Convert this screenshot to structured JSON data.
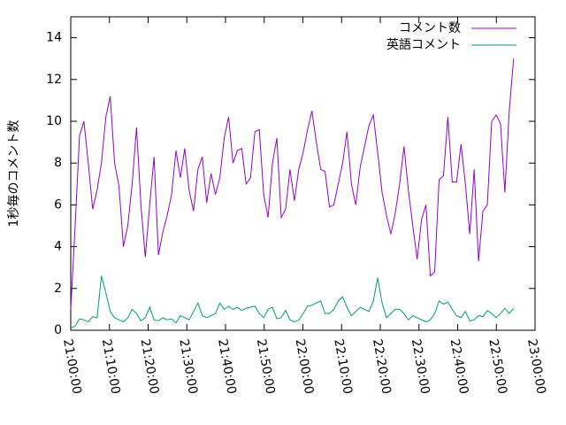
{
  "chart_data": {
    "type": "line",
    "ylabel": "1秒毎のコメント数",
    "x": [
      75600,
      75668,
      75736,
      75804,
      75872,
      75940,
      76008,
      76076,
      76144,
      76212,
      76280,
      76348,
      76416,
      76484,
      76552,
      76620,
      76688,
      76756,
      76824,
      76892,
      76960,
      77028,
      77096,
      77164,
      77232,
      77300,
      77368,
      77436,
      77504,
      77572,
      77640,
      77708,
      77776,
      77844,
      77912,
      77980,
      78048,
      78116,
      78184,
      78252,
      78320,
      78388,
      78456,
      78524,
      78592,
      78660,
      78728,
      78796,
      78864,
      78932,
      79000,
      79068,
      79136,
      79204,
      79272,
      79340,
      79408,
      79476,
      79544,
      79612,
      79680,
      79748,
      79816,
      79884,
      79952,
      80020,
      80088,
      80156,
      80224,
      80292,
      80360,
      80428,
      80496,
      80564,
      80632,
      80700,
      80768,
      80836,
      80904,
      80972,
      81040,
      81108,
      81176,
      81244,
      81312,
      81380,
      81448,
      81516,
      81584,
      81652,
      81720,
      81788,
      81856,
      81924,
      81992,
      82060,
      82128,
      82196,
      82264,
      82332,
      82400,
      82468
    ],
    "series": [
      {
        "name": "コメント数",
        "color": "#9400d3",
        "values": [
          1.0,
          5.0,
          9.3,
          10.0,
          8.0,
          5.8,
          6.7,
          8.0,
          10.2,
          11.2,
          8.0,
          6.9,
          4.0,
          5.0,
          7.0,
          9.7,
          6.0,
          3.5,
          6.0,
          8.3,
          3.6,
          4.7,
          5.5,
          6.5,
          8.6,
          7.3,
          8.7,
          6.7,
          5.7,
          7.7,
          8.3,
          6.1,
          7.5,
          6.5,
          7.3,
          9.2,
          10.2,
          8.0,
          8.6,
          8.7,
          7.0,
          7.3,
          9.5,
          9.6,
          6.5,
          5.4,
          8.0,
          9.2,
          5.4,
          5.8,
          7.7,
          6.2,
          7.7,
          8.5,
          9.6,
          10.5,
          9.0,
          7.7,
          7.6,
          5.9,
          6.0,
          7.0,
          8.0,
          9.5,
          7.0,
          6.0,
          7.8,
          8.8,
          9.8,
          10.3,
          8.5,
          6.6,
          5.5,
          4.6,
          5.6,
          7.0,
          8.8,
          6.7,
          5.0,
          3.4,
          5.3,
          6.0,
          2.6,
          2.8,
          7.2,
          7.4,
          10.2,
          7.1,
          7.1,
          8.9,
          7.0,
          4.6,
          7.7,
          3.3,
          5.7,
          6.0,
          10.0,
          10.3,
          9.9,
          6.6,
          10.5,
          13.0
        ]
      },
      {
        "name": "英語コメント",
        "color": "#009e73",
        "values": [
          0.1,
          0.2,
          0.55,
          0.5,
          0.4,
          0.65,
          0.6,
          2.6,
          1.8,
          0.9,
          0.6,
          0.5,
          0.4,
          0.6,
          1.0,
          0.8,
          0.45,
          0.6,
          1.1,
          0.5,
          0.45,
          0.6,
          0.5,
          0.55,
          0.35,
          0.7,
          0.6,
          0.5,
          0.9,
          1.3,
          0.7,
          0.6,
          0.7,
          0.8,
          1.3,
          1.0,
          1.15,
          1.0,
          1.1,
          0.95,
          1.05,
          1.1,
          1.15,
          0.8,
          0.6,
          1.0,
          1.1,
          0.55,
          0.6,
          0.95,
          0.5,
          0.4,
          0.5,
          0.8,
          1.15,
          1.2,
          1.3,
          1.4,
          0.8,
          0.8,
          1.0,
          1.4,
          1.6,
          1.1,
          0.7,
          0.9,
          1.1,
          1.0,
          0.9,
          1.4,
          2.5,
          1.3,
          0.6,
          0.8,
          1.0,
          1.0,
          0.8,
          0.5,
          0.7,
          0.6,
          0.5,
          0.4,
          0.5,
          0.8,
          1.4,
          1.25,
          1.35,
          1.0,
          0.7,
          0.6,
          0.9,
          0.45,
          0.5,
          0.7,
          0.65,
          0.95,
          0.8,
          0.6,
          0.8,
          1.05,
          0.8,
          1.05
        ]
      }
    ],
    "xlim": [
      75600,
      82800
    ],
    "xticks": [
      {
        "value": 75600,
        "label": "21:00:00"
      },
      {
        "value": 76200,
        "label": "21:10:00"
      },
      {
        "value": 76800,
        "label": "21:20:00"
      },
      {
        "value": 77400,
        "label": "21:30:00"
      },
      {
        "value": 78000,
        "label": "21:40:00"
      },
      {
        "value": 78600,
        "label": "21:50:00"
      },
      {
        "value": 79200,
        "label": "22:00:00"
      },
      {
        "value": 79800,
        "label": "22:10:00"
      },
      {
        "value": 80400,
        "label": "22:20:00"
      },
      {
        "value": 81000,
        "label": "22:30:00"
      },
      {
        "value": 81600,
        "label": "22:40:00"
      },
      {
        "value": 82200,
        "label": "22:50:00"
      },
      {
        "value": 82800,
        "label": "23:00:00"
      }
    ],
    "ylim": [
      0,
      15
    ],
    "yticks": [
      0,
      2,
      4,
      6,
      8,
      10,
      12,
      14
    ],
    "legend": "top-right"
  }
}
